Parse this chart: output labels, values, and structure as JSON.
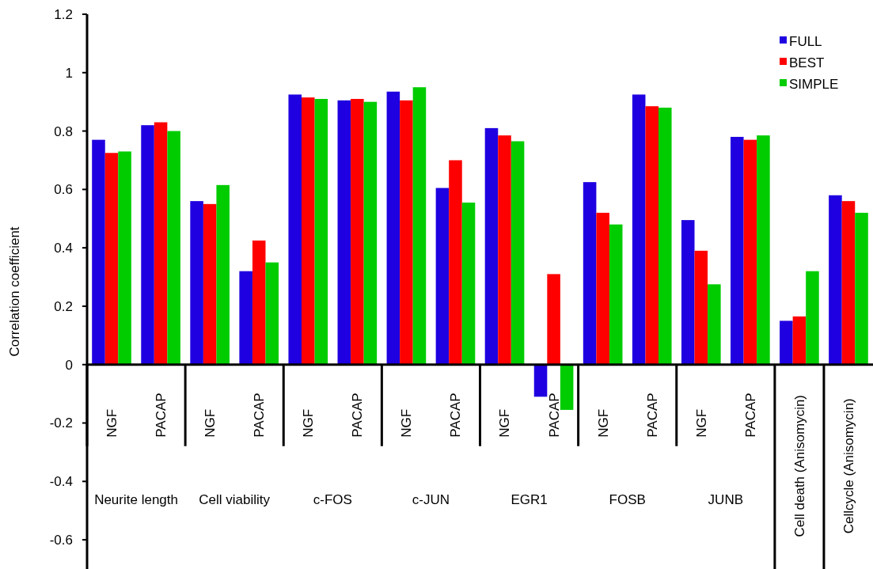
{
  "chart_data": {
    "type": "bar",
    "ylabel": "Correlation coefficient",
    "categories": [
      "NGF",
      "PACAP",
      "NGF",
      "PACAP",
      "NGF",
      "PACAP",
      "NGF",
      "PACAP",
      "NGF",
      "PACAP",
      "NGF",
      "PACAP",
      "NGF",
      "PACAP",
      "Cell death (Anisomycin)",
      "Cellcycle (Anisomycin)"
    ],
    "annotations": [
      "Neurite length",
      "Cell viability",
      "c-FOS",
      "c-JUN",
      "EGR1",
      "FOSB",
      "JUNB"
    ],
    "series": [
      {
        "name": "FULL",
        "color": "#1f00e0",
        "values": [
          0.77,
          0.82,
          0.56,
          0.32,
          0.925,
          0.905,
          0.935,
          0.605,
          0.81,
          -0.11,
          0.625,
          0.925,
          0.495,
          0.78,
          0.15,
          0.58
        ]
      },
      {
        "name": "BEST",
        "color": "#ff0000",
        "values": [
          0.725,
          0.83,
          0.55,
          0.425,
          0.915,
          0.91,
          0.905,
          0.7,
          0.785,
          0.31,
          0.52,
          0.885,
          0.39,
          0.77,
          0.165,
          0.56
        ]
      },
      {
        "name": "SIMPLE",
        "color": "#00cc00",
        "values": [
          0.73,
          0.8,
          0.615,
          0.35,
          0.91,
          0.9,
          0.95,
          0.555,
          0.765,
          -0.155,
          0.48,
          0.88,
          0.275,
          0.785,
          0.32,
          0.52
        ]
      }
    ],
    "ylim": [
      -0.7,
      1.2
    ],
    "yticks": [
      -0.6,
      -0.4,
      -0.2,
      0,
      0.2,
      0.4,
      0.6,
      0.8,
      1,
      1.2
    ],
    "legend": "top right",
    "grid": false
  }
}
